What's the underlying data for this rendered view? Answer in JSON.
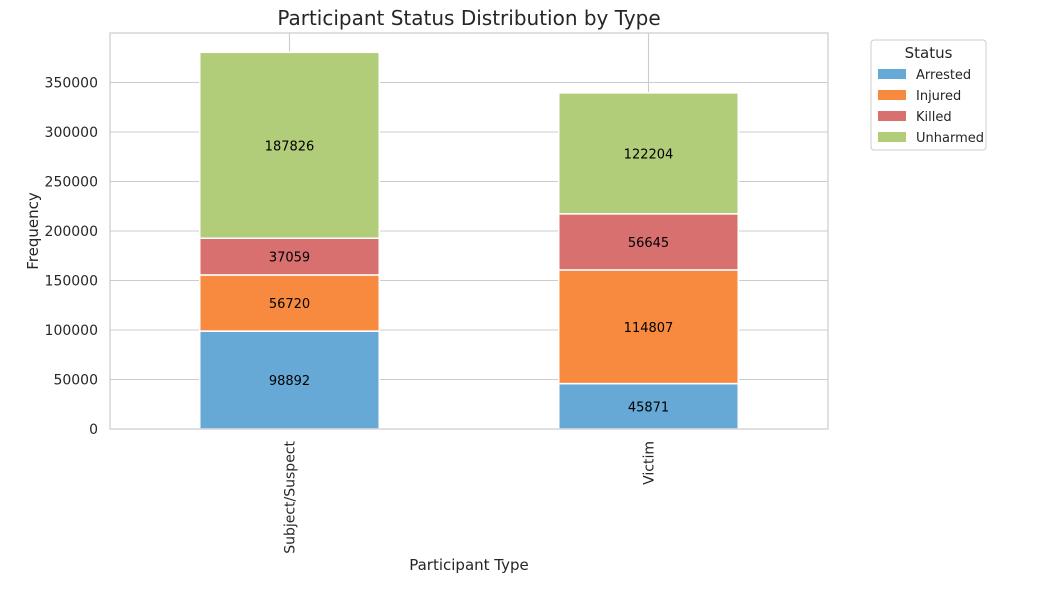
{
  "chart_data": {
    "type": "bar",
    "stacked": true,
    "title": "Participant Status Distribution by Type",
    "xlabel": "Participant Type",
    "ylabel": "Frequency",
    "categories": [
      "Subject/Suspect",
      "Victim"
    ],
    "ylim": [
      0,
      400000
    ],
    "yticks": [
      0,
      50000,
      100000,
      150000,
      200000,
      250000,
      300000,
      350000
    ],
    "grid": true,
    "series": [
      {
        "name": "Arrested",
        "values": [
          98892,
          45871
        ],
        "color": "#67a9d6"
      },
      {
        "name": "Injured",
        "values": [
          56720,
          114807
        ],
        "color": "#f78a3f"
      },
      {
        "name": "Killed",
        "values": [
          37059,
          56645
        ],
        "color": "#d87070"
      },
      {
        "name": "Unharmed",
        "values": [
          187826,
          122204
        ],
        "color": "#b1cd79"
      }
    ],
    "legend": {
      "title": "Status",
      "placement": "outside-top-right"
    }
  }
}
